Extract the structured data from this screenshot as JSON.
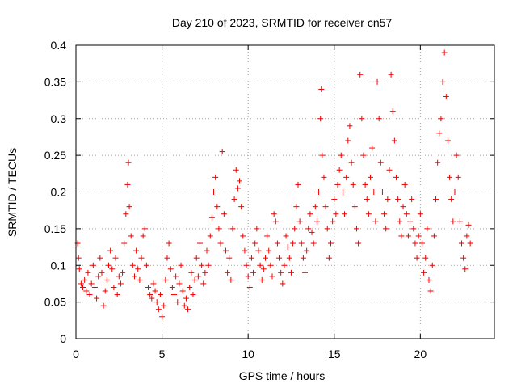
{
  "chart_data": {
    "type": "scatter",
    "title": "Day 210 of 2023, SRMTID for receiver cn57",
    "xlabel": "GPS time / hours",
    "ylabel": "SRMTID / TECUs",
    "xlim": [
      0,
      24.3
    ],
    "ylim": [
      0,
      0.4
    ],
    "xticks": [
      0,
      5,
      10,
      15,
      20
    ],
    "xtick_labels": [
      "0",
      "5",
      "10",
      "15",
      "20"
    ],
    "yticks": [
      0,
      0.05,
      0.1,
      0.15,
      0.2,
      0.25,
      0.3,
      0.35,
      0.4
    ],
    "ytick_labels": [
      "0",
      "0.05",
      "0.1",
      "0.15",
      "0.2",
      "0.25",
      "0.3",
      "0.35",
      "0.4"
    ],
    "grid": true,
    "marker": "+",
    "color": "#ee0000",
    "series": [
      {
        "name": "SRMTID",
        "points": [
          [
            0.0,
            0.125
          ],
          [
            0.1,
            0.13
          ],
          [
            0.15,
            0.11
          ],
          [
            0.2,
            0.095
          ],
          [
            0.3,
            0.075
          ],
          [
            0.4,
            0.07
          ],
          [
            0.5,
            0.08
          ],
          [
            0.6,
            0.065
          ],
          [
            0.7,
            0.09
          ],
          [
            0.8,
            0.06
          ],
          [
            0.9,
            0.075
          ],
          [
            1.0,
            0.1
          ],
          [
            1.1,
            0.07
          ],
          [
            1.2,
            0.055
          ],
          [
            1.3,
            0.085
          ],
          [
            1.4,
            0.11
          ],
          [
            1.5,
            0.09
          ],
          [
            1.6,
            0.045
          ],
          [
            1.7,
            0.065
          ],
          [
            1.8,
            0.08
          ],
          [
            1.9,
            0.1
          ],
          [
            2.0,
            0.12
          ],
          [
            2.1,
            0.095
          ],
          [
            2.2,
            0.07
          ],
          [
            2.3,
            0.11
          ],
          [
            2.4,
            0.06
          ],
          [
            2.5,
            0.085
          ],
          [
            2.6,
            0.075
          ],
          [
            2.7,
            0.09
          ],
          [
            2.8,
            0.13
          ],
          [
            2.9,
            0.17
          ],
          [
            3.0,
            0.21
          ],
          [
            3.05,
            0.24
          ],
          [
            3.1,
            0.18
          ],
          [
            3.2,
            0.14
          ],
          [
            3.3,
            0.1
          ],
          [
            3.4,
            0.085
          ],
          [
            3.5,
            0.12
          ],
          [
            3.6,
            0.095
          ],
          [
            3.7,
            0.08
          ],
          [
            3.8,
            0.11
          ],
          [
            3.9,
            0.14
          ],
          [
            4.0,
            0.15
          ],
          [
            4.1,
            0.1
          ],
          [
            4.2,
            0.07
          ],
          [
            4.3,
            0.06
          ],
          [
            4.4,
            0.055
          ],
          [
            4.5,
            0.075
          ],
          [
            4.6,
            0.065
          ],
          [
            4.7,
            0.05
          ],
          [
            4.8,
            0.04
          ],
          [
            4.9,
            0.06
          ],
          [
            5.0,
            0.03
          ],
          [
            5.1,
            0.045
          ],
          [
            5.2,
            0.08
          ],
          [
            5.3,
            0.11
          ],
          [
            5.4,
            0.13
          ],
          [
            5.5,
            0.095
          ],
          [
            5.6,
            0.07
          ],
          [
            5.7,
            0.06
          ],
          [
            5.8,
            0.085
          ],
          [
            5.9,
            0.05
          ],
          [
            6.0,
            0.075
          ],
          [
            6.1,
            0.1
          ],
          [
            6.2,
            0.065
          ],
          [
            6.3,
            0.045
          ],
          [
            6.4,
            0.055
          ],
          [
            6.5,
            0.04
          ],
          [
            6.6,
            0.07
          ],
          [
            6.7,
            0.09
          ],
          [
            6.8,
            0.06
          ],
          [
            6.9,
            0.08
          ],
          [
            7.0,
            0.11
          ],
          [
            7.1,
            0.085
          ],
          [
            7.2,
            0.13
          ],
          [
            7.3,
            0.1
          ],
          [
            7.4,
            0.075
          ],
          [
            7.5,
            0.09
          ],
          [
            7.6,
            0.12
          ],
          [
            7.7,
            0.1
          ],
          [
            7.8,
            0.14
          ],
          [
            7.9,
            0.165
          ],
          [
            8.0,
            0.2
          ],
          [
            8.1,
            0.22
          ],
          [
            8.2,
            0.18
          ],
          [
            8.3,
            0.15
          ],
          [
            8.4,
            0.13
          ],
          [
            8.5,
            0.255
          ],
          [
            8.6,
            0.17
          ],
          [
            8.7,
            0.12
          ],
          [
            8.8,
            0.09
          ],
          [
            8.9,
            0.11
          ],
          [
            9.0,
            0.08
          ],
          [
            9.1,
            0.15
          ],
          [
            9.2,
            0.19
          ],
          [
            9.3,
            0.23
          ],
          [
            9.4,
            0.205
          ],
          [
            9.5,
            0.215
          ],
          [
            9.6,
            0.18
          ],
          [
            9.7,
            0.14
          ],
          [
            9.8,
            0.12
          ],
          [
            9.9,
            0.1
          ],
          [
            10.0,
            0.085
          ],
          [
            10.1,
            0.07
          ],
          [
            10.2,
            0.11
          ],
          [
            10.3,
            0.09
          ],
          [
            10.4,
            0.13
          ],
          [
            10.5,
            0.15
          ],
          [
            10.6,
            0.12
          ],
          [
            10.7,
            0.1
          ],
          [
            10.8,
            0.08
          ],
          [
            10.9,
            0.095
          ],
          [
            11.0,
            0.11
          ],
          [
            11.1,
            0.14
          ],
          [
            11.2,
            0.12
          ],
          [
            11.3,
            0.1
          ],
          [
            11.4,
            0.085
          ],
          [
            11.5,
            0.17
          ],
          [
            11.6,
            0.16
          ],
          [
            11.7,
            0.13
          ],
          [
            11.8,
            0.11
          ],
          [
            11.9,
            0.09
          ],
          [
            12.0,
            0.075
          ],
          [
            12.1,
            0.1
          ],
          [
            12.2,
            0.14
          ],
          [
            12.3,
            0.125
          ],
          [
            12.4,
            0.11
          ],
          [
            12.5,
            0.09
          ],
          [
            12.6,
            0.13
          ],
          [
            12.7,
            0.15
          ],
          [
            12.8,
            0.18
          ],
          [
            12.9,
            0.21
          ],
          [
            13.0,
            0.16
          ],
          [
            13.1,
            0.13
          ],
          [
            13.2,
            0.11
          ],
          [
            13.3,
            0.09
          ],
          [
            13.4,
            0.12
          ],
          [
            13.5,
            0.15
          ],
          [
            13.6,
            0.17
          ],
          [
            13.7,
            0.145
          ],
          [
            13.8,
            0.13
          ],
          [
            13.9,
            0.18
          ],
          [
            14.0,
            0.16
          ],
          [
            14.1,
            0.2
          ],
          [
            14.2,
            0.3
          ],
          [
            14.25,
            0.34
          ],
          [
            14.3,
            0.25
          ],
          [
            14.4,
            0.22
          ],
          [
            14.5,
            0.18
          ],
          [
            14.6,
            0.15
          ],
          [
            14.7,
            0.11
          ],
          [
            14.8,
            0.13
          ],
          [
            14.9,
            0.16
          ],
          [
            15.0,
            0.19
          ],
          [
            15.1,
            0.17
          ],
          [
            15.2,
            0.21
          ],
          [
            15.3,
            0.23
          ],
          [
            15.4,
            0.25
          ],
          [
            15.5,
            0.2
          ],
          [
            15.6,
            0.17
          ],
          [
            15.7,
            0.22
          ],
          [
            15.8,
            0.27
          ],
          [
            15.9,
            0.29
          ],
          [
            16.0,
            0.24
          ],
          [
            16.1,
            0.21
          ],
          [
            16.2,
            0.18
          ],
          [
            16.3,
            0.15
          ],
          [
            16.4,
            0.13
          ],
          [
            16.5,
            0.36
          ],
          [
            16.6,
            0.3
          ],
          [
            16.7,
            0.25
          ],
          [
            16.8,
            0.21
          ],
          [
            16.9,
            0.19
          ],
          [
            17.0,
            0.17
          ],
          [
            17.1,
            0.22
          ],
          [
            17.2,
            0.26
          ],
          [
            17.3,
            0.2
          ],
          [
            17.4,
            0.16
          ],
          [
            17.5,
            0.35
          ],
          [
            17.6,
            0.3
          ],
          [
            17.7,
            0.24
          ],
          [
            17.8,
            0.2
          ],
          [
            17.9,
            0.17
          ],
          [
            18.0,
            0.15
          ],
          [
            18.1,
            0.19
          ],
          [
            18.2,
            0.23
          ],
          [
            18.3,
            0.36
          ],
          [
            18.4,
            0.31
          ],
          [
            18.5,
            0.27
          ],
          [
            18.6,
            0.22
          ],
          [
            18.7,
            0.19
          ],
          [
            18.8,
            0.16
          ],
          [
            18.9,
            0.14
          ],
          [
            19.0,
            0.18
          ],
          [
            19.1,
            0.21
          ],
          [
            19.2,
            0.17
          ],
          [
            19.3,
            0.14
          ],
          [
            19.4,
            0.16
          ],
          [
            19.5,
            0.19
          ],
          [
            19.6,
            0.15
          ],
          [
            19.7,
            0.13
          ],
          [
            19.8,
            0.11
          ],
          [
            19.9,
            0.14
          ],
          [
            20.0,
            0.17
          ],
          [
            20.1,
            0.13
          ],
          [
            20.2,
            0.09
          ],
          [
            20.3,
            0.11
          ],
          [
            20.4,
            0.15
          ],
          [
            20.5,
            0.08
          ],
          [
            20.6,
            0.065
          ],
          [
            20.7,
            0.1
          ],
          [
            20.8,
            0.14
          ],
          [
            20.9,
            0.19
          ],
          [
            21.0,
            0.24
          ],
          [
            21.1,
            0.28
          ],
          [
            21.2,
            0.3
          ],
          [
            21.3,
            0.35
          ],
          [
            21.4,
            0.39
          ],
          [
            21.5,
            0.33
          ],
          [
            21.6,
            0.27
          ],
          [
            21.7,
            0.22
          ],
          [
            21.8,
            0.19
          ],
          [
            21.9,
            0.16
          ],
          [
            22.0,
            0.2
          ],
          [
            22.1,
            0.25
          ],
          [
            22.2,
            0.22
          ],
          [
            22.3,
            0.16
          ],
          [
            22.4,
            0.13
          ],
          [
            22.5,
            0.11
          ],
          [
            22.6,
            0.095
          ],
          [
            22.7,
            0.14
          ],
          [
            22.8,
            0.155
          ],
          [
            22.9,
            0.13
          ]
        ]
      }
    ]
  }
}
